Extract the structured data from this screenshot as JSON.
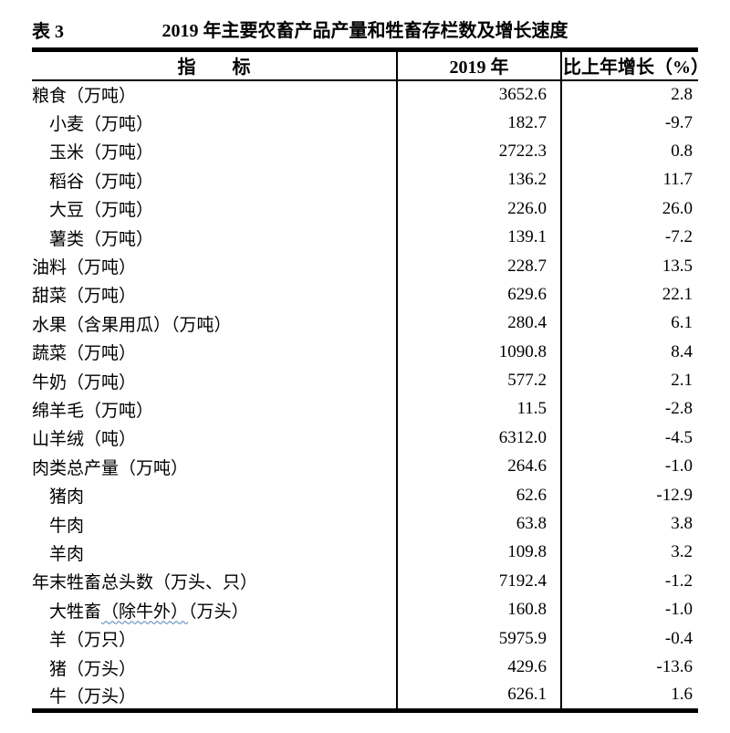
{
  "caption": {
    "table_label": "表 3",
    "title": "2019 年主要农畜产品产量和牲畜存栏数及增长速度"
  },
  "table": {
    "columns": [
      "指　　标",
      "2019 年",
      "比上年增长（%）"
    ],
    "rows": [
      {
        "label": "粮食（万吨）",
        "level": 0,
        "value": "3652.6",
        "growth": "2.8"
      },
      {
        "label": "小麦（万吨）",
        "level": 1,
        "value": "182.7",
        "growth": "-9.7"
      },
      {
        "label": "玉米（万吨）",
        "level": 1,
        "value": "2722.3",
        "growth": "0.8"
      },
      {
        "label": "稻谷（万吨）",
        "level": 1,
        "value": "136.2",
        "growth": "11.7"
      },
      {
        "label": "大豆（万吨）",
        "level": 1,
        "value": "226.0",
        "growth": "26.0"
      },
      {
        "label": "薯类（万吨）",
        "level": 1,
        "value": "139.1",
        "growth": "-7.2"
      },
      {
        "label": "油料（万吨）",
        "level": 0,
        "value": "228.7",
        "growth": "13.5"
      },
      {
        "label": "甜菜（万吨）",
        "level": 0,
        "value": "629.6",
        "growth": "22.1"
      },
      {
        "label": "水果（含果用瓜）（万吨）",
        "level": 0,
        "value": "280.4",
        "growth": "6.1"
      },
      {
        "label": "蔬菜（万吨）",
        "level": 0,
        "value": "1090.8",
        "growth": "8.4"
      },
      {
        "label": "牛奶（万吨）",
        "level": 0,
        "value": "577.2",
        "growth": "2.1"
      },
      {
        "label": "绵羊毛（万吨）",
        "level": 0,
        "value": "11.5",
        "growth": "-2.8"
      },
      {
        "label": "山羊绒（吨）",
        "level": 0,
        "value": "6312.0",
        "growth": "-4.5"
      },
      {
        "label": "肉类总产量（万吨）",
        "level": 0,
        "value": "264.6",
        "growth": "-1.0"
      },
      {
        "label": "猪肉",
        "level": 1,
        "value": "62.6",
        "growth": "-12.9"
      },
      {
        "label": "牛肉",
        "level": 1,
        "value": "63.8",
        "growth": "3.8"
      },
      {
        "label": "羊肉",
        "level": 1,
        "value": "109.8",
        "growth": "3.2"
      },
      {
        "label": "年末牲畜总头数（万头、只）",
        "level": 0,
        "value": "7192.4",
        "growth": "-1.2"
      },
      {
        "label": "大牲畜",
        "label_wavy": "（除牛外）",
        "label_suffix": "（万头）",
        "level": 1,
        "value": "160.8",
        "growth": "-1.0"
      },
      {
        "label": "羊（万只）",
        "level": 1,
        "value": "5975.9",
        "growth": "-0.4"
      },
      {
        "label": "猪（万头）",
        "level": 1,
        "value": "429.6",
        "growth": "-13.6"
      },
      {
        "label": "牛（万头）",
        "level": 1,
        "value": "626.1",
        "growth": "1.6"
      }
    ]
  },
  "colors": {
    "background": "#ffffff",
    "text": "#000000",
    "border": "#000000",
    "grammar_underline": "#4f81bd"
  },
  "chart_data": {
    "type": "table",
    "title": "2019 年主要农畜产品产量和牲畜存栏数及增长速度",
    "columns": [
      "指标",
      "2019 年",
      "比上年增长（%）"
    ],
    "rows": [
      [
        "粮食（万吨）",
        3652.6,
        2.8
      ],
      [
        "小麦（万吨）",
        182.7,
        -9.7
      ],
      [
        "玉米（万吨）",
        2722.3,
        0.8
      ],
      [
        "稻谷（万吨）",
        136.2,
        11.7
      ],
      [
        "大豆（万吨）",
        226.0,
        26.0
      ],
      [
        "薯类（万吨）",
        139.1,
        -7.2
      ],
      [
        "油料（万吨）",
        228.7,
        13.5
      ],
      [
        "甜菜（万吨）",
        629.6,
        22.1
      ],
      [
        "水果（含果用瓜）（万吨）",
        280.4,
        6.1
      ],
      [
        "蔬菜（万吨）",
        1090.8,
        8.4
      ],
      [
        "牛奶（万吨）",
        577.2,
        2.1
      ],
      [
        "绵羊毛（万吨）",
        11.5,
        -2.8
      ],
      [
        "山羊绒（吨）",
        6312.0,
        -4.5
      ],
      [
        "肉类总产量（万吨）",
        264.6,
        -1.0
      ],
      [
        "猪肉",
        62.6,
        -12.9
      ],
      [
        "牛肉",
        63.8,
        3.8
      ],
      [
        "羊肉",
        109.8,
        3.2
      ],
      [
        "年末牲畜总头数（万头、只）",
        7192.4,
        -1.2
      ],
      [
        "大牲畜（除牛外）（万头）",
        160.8,
        -1.0
      ],
      [
        "羊（万只）",
        5975.9,
        -0.4
      ],
      [
        "猪（万头）",
        429.6,
        -13.6
      ],
      [
        "牛（万头）",
        626.1,
        1.6
      ]
    ]
  }
}
